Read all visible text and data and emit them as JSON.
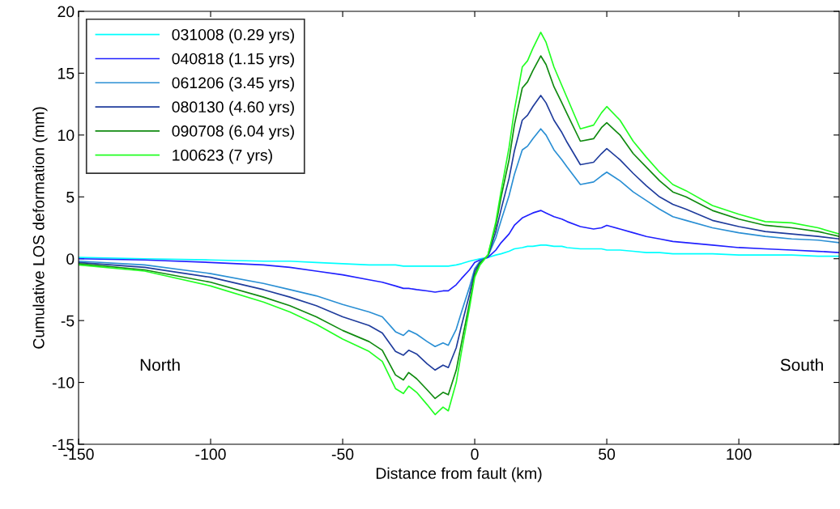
{
  "chart_data": {
    "type": "line",
    "xlabel": "Distance from fault (km)",
    "ylabel": "Cumulative LOS deformation (mm)",
    "x": [
      -150,
      -125,
      -100,
      -80,
      -70,
      -60,
      -50,
      -40,
      -35,
      -30,
      -27,
      -25,
      -22,
      -18,
      -15,
      -12,
      -10,
      -7,
      -5,
      -2,
      0,
      2,
      5,
      8,
      10,
      13,
      15,
      18,
      20,
      22,
      25,
      27,
      30,
      33,
      35,
      40,
      45,
      48,
      50,
      55,
      60,
      65,
      70,
      75,
      80,
      90,
      100,
      110,
      120,
      130,
      138
    ],
    "series": [
      {
        "name": "031008 (0.29 yrs)",
        "color": "#00ffff",
        "values": [
          0.1,
          0.0,
          -0.1,
          -0.2,
          -0.2,
          -0.3,
          -0.4,
          -0.5,
          -0.5,
          -0.5,
          -0.6,
          -0.6,
          -0.6,
          -0.6,
          -0.6,
          -0.6,
          -0.6,
          -0.5,
          -0.4,
          -0.2,
          -0.1,
          0.0,
          0.1,
          0.3,
          0.4,
          0.6,
          0.8,
          0.9,
          1.0,
          1.0,
          1.1,
          1.1,
          1.0,
          1.0,
          0.9,
          0.8,
          0.8,
          0.8,
          0.7,
          0.7,
          0.6,
          0.5,
          0.5,
          0.4,
          0.4,
          0.4,
          0.3,
          0.3,
          0.3,
          0.2,
          0.2
        ]
      },
      {
        "name": "040818 (1.15 yrs)",
        "color": "#2020ff",
        "values": [
          0.0,
          -0.1,
          -0.3,
          -0.5,
          -0.7,
          -1.0,
          -1.3,
          -1.7,
          -1.9,
          -2.2,
          -2.4,
          -2.4,
          -2.5,
          -2.6,
          -2.7,
          -2.6,
          -2.6,
          -2.1,
          -1.6,
          -0.9,
          -0.3,
          -0.1,
          0.1,
          0.7,
          1.3,
          2.0,
          2.7,
          3.3,
          3.5,
          3.7,
          3.9,
          3.7,
          3.4,
          3.2,
          3.0,
          2.6,
          2.4,
          2.5,
          2.7,
          2.4,
          2.1,
          1.8,
          1.6,
          1.4,
          1.3,
          1.1,
          0.9,
          0.8,
          0.7,
          0.6,
          0.5
        ]
      },
      {
        "name": "061206 (3.45 yrs)",
        "color": "#2a8fd4",
        "values": [
          -0.2,
          -0.5,
          -1.2,
          -2.0,
          -2.5,
          -3.0,
          -3.7,
          -4.3,
          -4.7,
          -5.9,
          -6.2,
          -5.8,
          -6.1,
          -6.7,
          -7.1,
          -6.8,
          -7.0,
          -5.7,
          -4.3,
          -2.3,
          -0.8,
          -0.2,
          0.2,
          1.7,
          3.1,
          5.1,
          6.8,
          8.8,
          9.1,
          9.7,
          10.5,
          10.0,
          8.8,
          8.0,
          7.4,
          6.0,
          6.2,
          6.7,
          7.0,
          6.3,
          5.4,
          4.7,
          4.0,
          3.4,
          3.1,
          2.5,
          2.1,
          1.8,
          1.6,
          1.5,
          1.3
        ]
      },
      {
        "name": "080130 (4.60 yrs)",
        "color": "#1f3c9c",
        "values": [
          -0.3,
          -0.7,
          -1.5,
          -2.5,
          -3.1,
          -3.8,
          -4.7,
          -5.4,
          -6.0,
          -7.5,
          -7.8,
          -7.4,
          -7.7,
          -8.5,
          -9.0,
          -8.6,
          -8.8,
          -7.2,
          -5.4,
          -2.9,
          -1.0,
          -0.3,
          0.2,
          2.2,
          4.0,
          6.5,
          8.7,
          11.2,
          11.6,
          12.3,
          13.2,
          12.6,
          11.2,
          10.2,
          9.4,
          7.6,
          7.8,
          8.5,
          8.9,
          8.0,
          6.9,
          5.9,
          5.0,
          4.4,
          4.0,
          3.1,
          2.6,
          2.2,
          2.0,
          1.8,
          1.6
        ]
      },
      {
        "name": "090708 (6.04 yrs)",
        "color": "#0f8a0f",
        "values": [
          -0.4,
          -0.9,
          -1.9,
          -3.1,
          -3.8,
          -4.7,
          -5.8,
          -6.7,
          -7.4,
          -9.4,
          -9.8,
          -9.2,
          -9.7,
          -10.6,
          -11.3,
          -10.8,
          -11.0,
          -9.0,
          -6.8,
          -3.6,
          -1.3,
          -0.4,
          0.3,
          2.7,
          5.0,
          8.0,
          10.8,
          13.8,
          14.3,
          15.2,
          16.4,
          15.7,
          13.9,
          12.6,
          11.7,
          9.5,
          9.7,
          10.6,
          11.0,
          10.0,
          8.5,
          7.4,
          6.3,
          5.4,
          5.0,
          3.9,
          3.2,
          2.7,
          2.5,
          2.2,
          1.8
        ]
      },
      {
        "name": "100623 (7 yrs)",
        "color": "#22ff22",
        "values": [
          -0.5,
          -1.0,
          -2.2,
          -3.5,
          -4.3,
          -5.3,
          -6.5,
          -7.5,
          -8.3,
          -10.5,
          -10.9,
          -10.3,
          -10.8,
          -11.8,
          -12.6,
          -12.0,
          -12.3,
          -10.0,
          -7.5,
          -4.0,
          -1.5,
          -0.5,
          0.3,
          3.0,
          5.5,
          9.0,
          12.0,
          15.5,
          16.0,
          17.0,
          18.3,
          17.5,
          15.5,
          14.0,
          13.0,
          10.5,
          10.8,
          11.8,
          12.3,
          11.2,
          9.5,
          8.2,
          7.0,
          6.0,
          5.5,
          4.3,
          3.6,
          3.0,
          2.9,
          2.5,
          2.0
        ]
      }
    ],
    "annotations": [
      "North",
      "South"
    ],
    "xlim": [
      -150,
      138
    ],
    "xticks": [
      -150,
      -100,
      -50,
      0,
      50,
      100
    ],
    "ylim": [
      -15,
      20
    ],
    "yticks": [
      -15,
      -10,
      -5,
      0,
      5,
      10,
      15,
      20
    ],
    "legend": "top left",
    "grid": false,
    "line_style": "solid",
    "marker": "none"
  }
}
